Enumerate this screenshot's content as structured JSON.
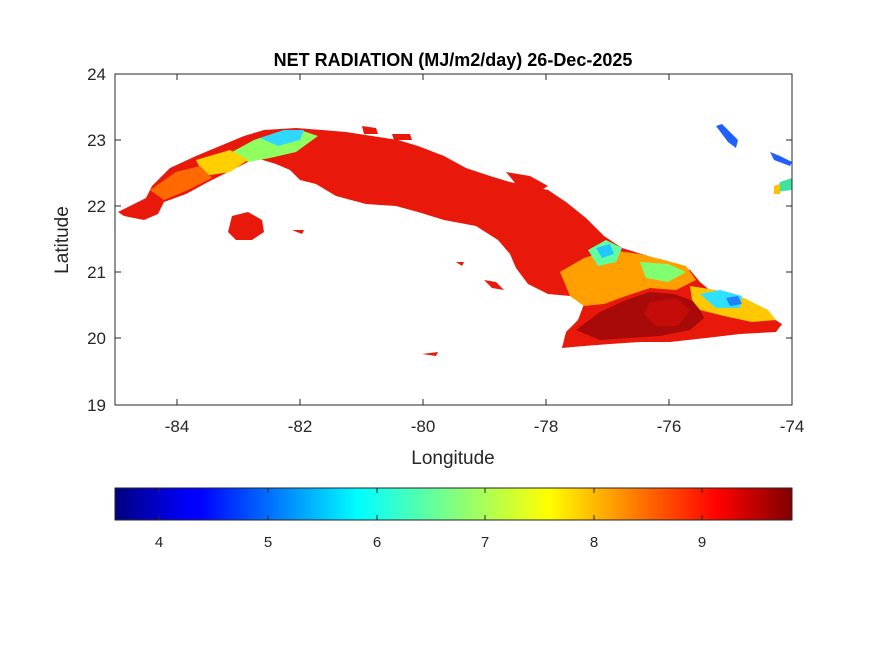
{
  "map": {
    "title": "NET RADIATION (MJ/m2/day) 26-Dec-2025",
    "xlabel": "Longitude",
    "ylabel": "Latitude",
    "xlim": [
      -85,
      -74
    ],
    "ylim": [
      19,
      24
    ],
    "x_ticks": [
      "-84",
      "-82",
      "-80",
      "-78",
      "-76",
      "-74"
    ],
    "y_ticks": [
      "24",
      "23",
      "22",
      "21",
      "20",
      "19"
    ],
    "region": "Cuba",
    "colormap": "jet",
    "land_dominant_color": "#e01800",
    "colorbar": {
      "range": [
        3.6,
        9.85
      ],
      "ticks": [
        "4",
        "5",
        "6",
        "7",
        "8",
        "9"
      ],
      "orientation": "horizontal",
      "placement": "below"
    }
  }
}
